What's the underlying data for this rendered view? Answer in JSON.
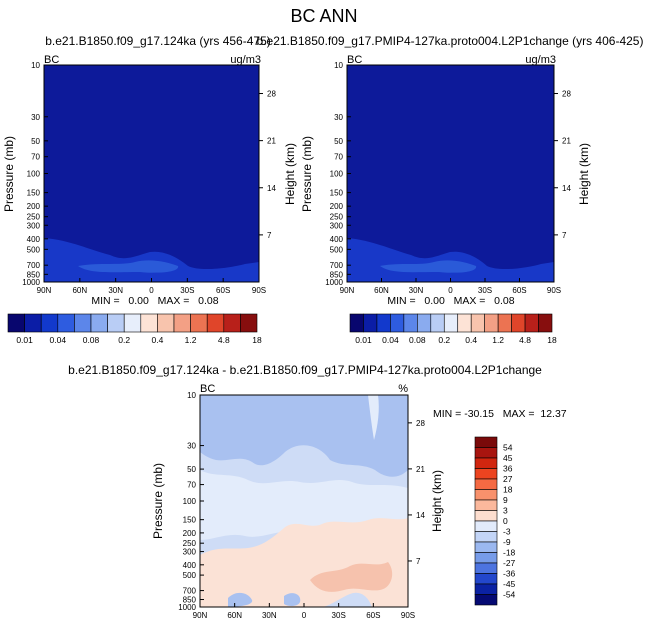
{
  "main_title": "BC ANN",
  "panels": [
    {
      "id": "left",
      "title": "b.e21.B1850.f09_g17.124ka (yrs 456-475)",
      "corner_left": "BC",
      "corner_right": "ug/m3",
      "ylabel": "Pressure (mb)",
      "ylabel_right": "Height (km)",
      "minmax": "MIN =   0.00   MAX =   0.08"
    },
    {
      "id": "right",
      "title": "b.e21.B1850.f09_g17.PMIP4-127ka.proto004.L2P1change (yrs 406-425)",
      "corner_left": "BC",
      "corner_right": "ug/m3",
      "ylabel": "Pressure (mb)",
      "ylabel_right": "Height (km)",
      "minmax": "MIN =   0.00   MAX =   0.08"
    },
    {
      "id": "diff",
      "title": "b.e21.B1850.f09_g17.124ka - b.e21.B1850.f09_g17.PMIP4-127ka.proto004.L2P1change",
      "corner_left": "BC",
      "corner_right": "%",
      "ylabel": "Pressure (mb)",
      "ylabel_right": "Height (km)",
      "minmax": "MIN = -30.15   MAX =  12.37"
    }
  ],
  "chart_data": [
    {
      "type": "heatmap",
      "title": "b.e21.B1850.f09_g17.124ka (yrs 456-475)",
      "variable": "BC",
      "units": "ug/m3",
      "x_ticks": [
        "90N",
        "60N",
        "30N",
        "0",
        "30S",
        "60S",
        "90S"
      ],
      "x_values": [
        90,
        60,
        30,
        0,
        -30,
        -60,
        -90
      ],
      "y_ticks": [
        "10",
        "30",
        "50",
        "70",
        "100",
        "150",
        "200",
        "250",
        "300",
        "400",
        "500",
        "700",
        "850",
        "1000"
      ],
      "y_values": [
        10,
        30,
        50,
        70,
        100,
        150,
        200,
        250,
        300,
        400,
        500,
        700,
        850,
        1000
      ],
      "y_range": [
        10,
        1000
      ],
      "y_scale": "log",
      "y_inverted": true,
      "height_ticks": [
        "28",
        "21",
        "14",
        "7"
      ],
      "height_values": [
        28,
        21,
        14,
        7
      ],
      "min": 0.0,
      "max": 0.08,
      "colorbar_labels": [
        "0.01",
        "0.04",
        "0.08",
        "0.2",
        "0.4",
        "1.2",
        "4.8",
        "18"
      ],
      "levels": [
        0.01,
        0.02,
        0.04,
        0.06,
        0.08,
        0.1,
        0.2,
        0.3,
        0.4,
        0.8,
        1.2,
        2.4,
        4.8,
        9.6,
        18
      ]
    },
    {
      "type": "heatmap",
      "title": "b.e21.B1850.f09_g17.PMIP4-127ka.proto004.L2P1change (yrs 406-425)",
      "variable": "BC",
      "units": "ug/m3",
      "x_ticks": [
        "90N",
        "60N",
        "30N",
        "0",
        "30S",
        "60S",
        "90S"
      ],
      "x_values": [
        90,
        60,
        30,
        0,
        -30,
        -60,
        -90
      ],
      "y_ticks": [
        "10",
        "30",
        "50",
        "70",
        "100",
        "150",
        "200",
        "250",
        "300",
        "400",
        "500",
        "700",
        "850",
        "1000"
      ],
      "y_values": [
        10,
        30,
        50,
        70,
        100,
        150,
        200,
        250,
        300,
        400,
        500,
        700,
        850,
        1000
      ],
      "y_range": [
        10,
        1000
      ],
      "y_scale": "log",
      "y_inverted": true,
      "height_ticks": [
        "28",
        "21",
        "14",
        "7"
      ],
      "height_values": [
        28,
        21,
        14,
        7
      ],
      "min": 0.0,
      "max": 0.08,
      "colorbar_labels": [
        "0.01",
        "0.04",
        "0.08",
        "0.2",
        "0.4",
        "1.2",
        "4.8",
        "18"
      ],
      "levels": [
        0.01,
        0.02,
        0.04,
        0.06,
        0.08,
        0.1,
        0.2,
        0.3,
        0.4,
        0.8,
        1.2,
        2.4,
        4.8,
        9.6,
        18
      ]
    },
    {
      "type": "heatmap",
      "title": "b.e21.B1850.f09_g17.124ka - b.e21.B1850.f09_g17.PMIP4-127ka.proto004.L2P1change",
      "variable": "BC",
      "units": "%",
      "x_ticks": [
        "90N",
        "60N",
        "30N",
        "0",
        "30S",
        "60S",
        "90S"
      ],
      "x_values": [
        90,
        60,
        30,
        0,
        -30,
        -60,
        -90
      ],
      "y_ticks": [
        "10",
        "30",
        "50",
        "70",
        "100",
        "150",
        "200",
        "250",
        "300",
        "400",
        "500",
        "700",
        "850",
        "1000"
      ],
      "y_values": [
        10,
        30,
        50,
        70,
        100,
        150,
        200,
        250,
        300,
        400,
        500,
        700,
        850,
        1000
      ],
      "y_range": [
        10,
        1000
      ],
      "y_scale": "log",
      "y_inverted": true,
      "height_ticks": [
        "28",
        "21",
        "14",
        "7"
      ],
      "height_values": [
        28,
        21,
        14,
        7
      ],
      "min": -30.15,
      "max": 12.37,
      "colorbar_labels": [
        "54",
        "45",
        "36",
        "27",
        "18",
        "9",
        "3",
        "0",
        "-3",
        "-9",
        "-18",
        "-27",
        "-36",
        "-45",
        "-54"
      ],
      "levels": [
        54,
        45,
        36,
        27,
        18,
        9,
        3,
        0,
        -3,
        -9,
        -18,
        -27,
        -36,
        -45,
        -54
      ]
    }
  ],
  "colors": {
    "abs_scale": [
      "#08066e",
      "#0b1da6",
      "#1239cc",
      "#2e5ce0",
      "#5c86ea",
      "#8aabef",
      "#b9cdf5",
      "#e7eefb",
      "#fde3d6",
      "#f8c4ad",
      "#f3a085",
      "#ec7352",
      "#e0452a",
      "#b8201a",
      "#870e0e"
    ],
    "diff_scale": [
      "#7a0a0a",
      "#a8150f",
      "#d1260f",
      "#ec4420",
      "#f56a43",
      "#f8916c",
      "#fbb89c",
      "#fddecf",
      "#e2ebfb",
      "#c3d5f7",
      "#9bb8f0",
      "#779ce9",
      "#4d74e0",
      "#2347cc",
      "#0b22a3",
      "#050a73"
    ],
    "field_abs_bg": "#0d1a9a",
    "field_abs_b1": "#1838c8",
    "field_abs_b2": "#2a5ad8",
    "diff_bg": "#cedcf6",
    "diff_b1": "#a9c1f0",
    "diff_light": "#e3ecfb",
    "diff_pos": "#fbe2d6",
    "diff_pos2": "#f6c2ad"
  }
}
